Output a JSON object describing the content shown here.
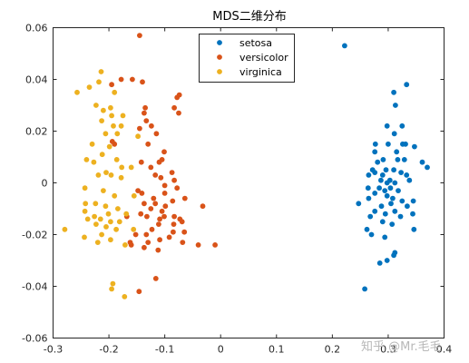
{
  "chart_data": {
    "type": "scatter",
    "title": "MDS二维分布",
    "xlabel": "",
    "ylabel": "",
    "xlim": [
      -0.3,
      0.4
    ],
    "ylim": [
      -0.06,
      0.06
    ],
    "xticks": [
      "-0.3",
      "-0.2",
      "-0.1",
      "0",
      "0.1",
      "0.2",
      "0.3",
      "0.4"
    ],
    "yticks": [
      "-0.06",
      "-0.04",
      "-0.02",
      "0",
      "0.02",
      "0.04",
      "0.06"
    ],
    "legend_position": "top-center",
    "grid": false,
    "series": [
      {
        "name": "setosa",
        "color": "#0072BD",
        "points": [
          [
            0.222,
            0.053
          ],
          [
            0.333,
            0.038
          ],
          [
            0.31,
            0.035
          ],
          [
            0.313,
            0.03
          ],
          [
            0.325,
            0.022
          ],
          [
            0.298,
            0.022
          ],
          [
            0.311,
            0.019
          ],
          [
            0.277,
            0.015
          ],
          [
            0.3,
            0.015
          ],
          [
            0.326,
            0.015
          ],
          [
            0.331,
            0.015
          ],
          [
            0.347,
            0.014
          ],
          [
            0.276,
            0.012
          ],
          [
            0.315,
            0.012
          ],
          [
            0.361,
            0.008
          ],
          [
            0.37,
            0.006
          ],
          [
            0.281,
            0.008
          ],
          [
            0.291,
            0.009
          ],
          [
            0.317,
            0.009
          ],
          [
            0.329,
            0.009
          ],
          [
            0.272,
            0.005
          ],
          [
            0.296,
            0.005
          ],
          [
            0.276,
            0.004
          ],
          [
            0.31,
            0.005
          ],
          [
            0.323,
            0.004
          ],
          [
            0.265,
            0.003
          ],
          [
            0.29,
            0.003
          ],
          [
            0.333,
            0.003
          ],
          [
            0.287,
            0.001
          ],
          [
            0.303,
            0.001
          ],
          [
            0.298,
            0.0
          ],
          [
            0.312,
            0.0
          ],
          [
            0.338,
            0.001
          ],
          [
            0.264,
            -0.002
          ],
          [
            0.284,
            -0.002
          ],
          [
            0.304,
            -0.002
          ],
          [
            0.294,
            -0.003
          ],
          [
            0.318,
            -0.003
          ],
          [
            0.276,
            -0.004
          ],
          [
            0.298,
            -0.005
          ],
          [
            0.265,
            -0.006
          ],
          [
            0.308,
            -0.006
          ],
          [
            0.325,
            -0.007
          ],
          [
            0.345,
            -0.007
          ],
          [
            0.247,
            -0.008
          ],
          [
            0.288,
            -0.009
          ],
          [
            0.305,
            -0.008
          ],
          [
            0.334,
            -0.009
          ],
          [
            0.276,
            -0.011
          ],
          [
            0.312,
            -0.011
          ],
          [
            0.295,
            -0.012
          ],
          [
            0.344,
            -0.012
          ],
          [
            0.268,
            -0.013
          ],
          [
            0.322,
            -0.013
          ],
          [
            0.29,
            -0.015
          ],
          [
            0.307,
            -0.016
          ],
          [
            0.262,
            -0.018
          ],
          [
            0.346,
            -0.018
          ],
          [
            0.27,
            -0.02
          ],
          [
            0.294,
            -0.021
          ],
          [
            0.312,
            -0.027
          ],
          [
            0.31,
            -0.028
          ],
          [
            0.298,
            -0.03
          ],
          [
            0.285,
            -0.031
          ],
          [
            0.258,
            -0.041
          ]
        ]
      },
      {
        "name": "versicolor",
        "color": "#D95319",
        "points": [
          [
            -0.145,
            0.057
          ],
          [
            -0.178,
            0.04
          ],
          [
            -0.158,
            0.04
          ],
          [
            -0.14,
            0.039
          ],
          [
            -0.195,
            0.038
          ],
          [
            -0.074,
            0.034
          ],
          [
            -0.078,
            0.033
          ],
          [
            -0.083,
            0.029
          ],
          [
            -0.135,
            0.029
          ],
          [
            -0.137,
            0.027
          ],
          [
            -0.075,
            0.027
          ],
          [
            -0.133,
            0.024
          ],
          [
            -0.124,
            0.022
          ],
          [
            -0.145,
            0.021
          ],
          [
            -0.115,
            0.019
          ],
          [
            -0.194,
            0.016
          ],
          [
            -0.19,
            0.015
          ],
          [
            -0.13,
            0.015
          ],
          [
            -0.101,
            0.012
          ],
          [
            -0.105,
            0.009
          ],
          [
            -0.142,
            0.008
          ],
          [
            -0.11,
            0.008
          ],
          [
            -0.125,
            0.006
          ],
          [
            -0.087,
            0.004
          ],
          [
            -0.117,
            0.003
          ],
          [
            -0.107,
            0.002
          ],
          [
            -0.083,
            0.001
          ],
          [
            -0.1,
            -0.001
          ],
          [
            -0.078,
            -0.002
          ],
          [
            -0.148,
            -0.003
          ],
          [
            -0.141,
            -0.004
          ],
          [
            -0.1,
            -0.004
          ],
          [
            -0.12,
            -0.006
          ],
          [
            -0.064,
            -0.006
          ],
          [
            -0.086,
            -0.007
          ],
          [
            -0.117,
            -0.008
          ],
          [
            -0.137,
            -0.008
          ],
          [
            -0.099,
            -0.009
          ],
          [
            -0.032,
            -0.009
          ],
          [
            -0.125,
            -0.01
          ],
          [
            -0.105,
            -0.011
          ],
          [
            -0.143,
            -0.012
          ],
          [
            -0.132,
            -0.013
          ],
          [
            -0.168,
            -0.013
          ],
          [
            -0.101,
            -0.013
          ],
          [
            -0.083,
            -0.013
          ],
          [
            -0.073,
            -0.014
          ],
          [
            -0.109,
            -0.014
          ],
          [
            -0.069,
            -0.015
          ],
          [
            -0.084,
            -0.016
          ],
          [
            -0.111,
            -0.016
          ],
          [
            -0.123,
            -0.018
          ],
          [
            -0.085,
            -0.019
          ],
          [
            -0.065,
            -0.019
          ],
          [
            -0.133,
            -0.02
          ],
          [
            -0.152,
            -0.02
          ],
          [
            -0.092,
            -0.021
          ],
          [
            -0.109,
            -0.022
          ],
          [
            -0.068,
            -0.023
          ],
          [
            -0.162,
            -0.023
          ],
          [
            -0.13,
            -0.023
          ],
          [
            -0.04,
            -0.024
          ],
          [
            -0.01,
            -0.024
          ],
          [
            -0.137,
            -0.025
          ],
          [
            -0.112,
            -0.026
          ],
          [
            -0.16,
            -0.024
          ],
          [
            -0.116,
            -0.037
          ],
          [
            -0.146,
            -0.042
          ]
        ]
      },
      {
        "name": "virginica",
        "color": "#EDB120",
        "points": [
          [
            -0.214,
            0.043
          ],
          [
            -0.218,
            0.039
          ],
          [
            -0.235,
            0.037
          ],
          [
            -0.257,
            0.035
          ],
          [
            -0.19,
            0.035
          ],
          [
            -0.223,
            0.03
          ],
          [
            -0.197,
            0.029
          ],
          [
            -0.21,
            0.028
          ],
          [
            -0.175,
            0.026
          ],
          [
            -0.195,
            0.026
          ],
          [
            -0.213,
            0.024
          ],
          [
            -0.192,
            0.022
          ],
          [
            -0.178,
            0.022
          ],
          [
            -0.206,
            0.019
          ],
          [
            -0.185,
            0.019
          ],
          [
            -0.148,
            0.018
          ],
          [
            -0.23,
            0.015
          ],
          [
            -0.199,
            0.014
          ],
          [
            -0.212,
            0.011
          ],
          [
            -0.24,
            0.009
          ],
          [
            -0.186,
            0.009
          ],
          [
            -0.227,
            0.008
          ],
          [
            -0.177,
            0.006
          ],
          [
            -0.16,
            0.006
          ],
          [
            -0.205,
            0.004
          ],
          [
            -0.196,
            0.003
          ],
          [
            -0.219,
            0.003
          ],
          [
            -0.178,
            0.002
          ],
          [
            -0.243,
            -0.002
          ],
          [
            -0.21,
            -0.003
          ],
          [
            -0.19,
            -0.005
          ],
          [
            -0.155,
            -0.005
          ],
          [
            -0.242,
            -0.008
          ],
          [
            -0.224,
            -0.008
          ],
          [
            -0.206,
            -0.009
          ],
          [
            -0.184,
            -0.01
          ],
          [
            -0.243,
            -0.011
          ],
          [
            -0.201,
            -0.012
          ],
          [
            -0.226,
            -0.013
          ],
          [
            -0.169,
            -0.012
          ],
          [
            -0.238,
            -0.014
          ],
          [
            -0.215,
            -0.014
          ],
          [
            -0.197,
            -0.015
          ],
          [
            -0.181,
            -0.015
          ],
          [
            -0.223,
            -0.016
          ],
          [
            -0.205,
            -0.017
          ],
          [
            -0.187,
            -0.018
          ],
          [
            -0.279,
            -0.018
          ],
          [
            -0.156,
            -0.018
          ],
          [
            -0.213,
            -0.02
          ],
          [
            -0.244,
            -0.021
          ],
          [
            -0.22,
            -0.023
          ],
          [
            -0.197,
            -0.022
          ],
          [
            -0.171,
            -0.024
          ],
          [
            -0.193,
            -0.039
          ],
          [
            -0.195,
            -0.041
          ],
          [
            -0.172,
            -0.044
          ]
        ]
      }
    ]
  },
  "watermark": {
    "text": "知乎 @Mr.毛毛"
  }
}
